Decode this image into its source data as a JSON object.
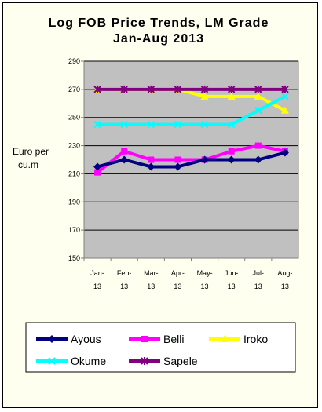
{
  "chart_data": {
    "type": "line",
    "title": "Log FOB Price Trends, LM Grade",
    "subtitle": "Jan-Aug 2013",
    "ylabel": "Euro per cu.m",
    "ylabel_lines": [
      "Euro per",
      "cu.m"
    ],
    "xlabel": "",
    "ylim": [
      150,
      290
    ],
    "yticks": [
      150,
      170,
      190,
      210,
      230,
      250,
      270,
      290
    ],
    "categories": [
      "Jan-13",
      "Feb-13",
      "Mar-13",
      "Apr-13",
      "May-13",
      "Jun-13",
      "Jul-13",
      "Aug-13"
    ],
    "category_lines": [
      [
        "Jan-",
        "13"
      ],
      [
        "Feb-",
        "13"
      ],
      [
        "Mar-",
        "13"
      ],
      [
        "Apr-",
        "13"
      ],
      [
        "May-",
        "13"
      ],
      [
        "Jun-",
        "13"
      ],
      [
        "Jul-",
        "13"
      ],
      [
        "Aug-",
        "13"
      ]
    ],
    "grid": true,
    "legend_position": "bottom",
    "plot_background": "#c0c0c0",
    "series": [
      {
        "name": "Ayous",
        "values": [
          215,
          220,
          215,
          215,
          220,
          220,
          220,
          225
        ],
        "color": "#000080",
        "marker": "diamond"
      },
      {
        "name": "Belli",
        "values": [
          211,
          226,
          220,
          220,
          220,
          226,
          230,
          226
        ],
        "color": "#ff00ff",
        "marker": "square"
      },
      {
        "name": "Iroko",
        "values": [
          270,
          270,
          270,
          270,
          265,
          265,
          265,
          255
        ],
        "color": "#ffff00",
        "marker": "triangle"
      },
      {
        "name": "Okume",
        "values": [
          245,
          245,
          245,
          245,
          245,
          245,
          255,
          265
        ],
        "color": "#00ffff",
        "marker": "x"
      },
      {
        "name": "Sapele",
        "values": [
          270,
          270,
          270,
          270,
          270,
          270,
          270,
          270
        ],
        "color": "#800080",
        "marker": "star"
      }
    ]
  }
}
